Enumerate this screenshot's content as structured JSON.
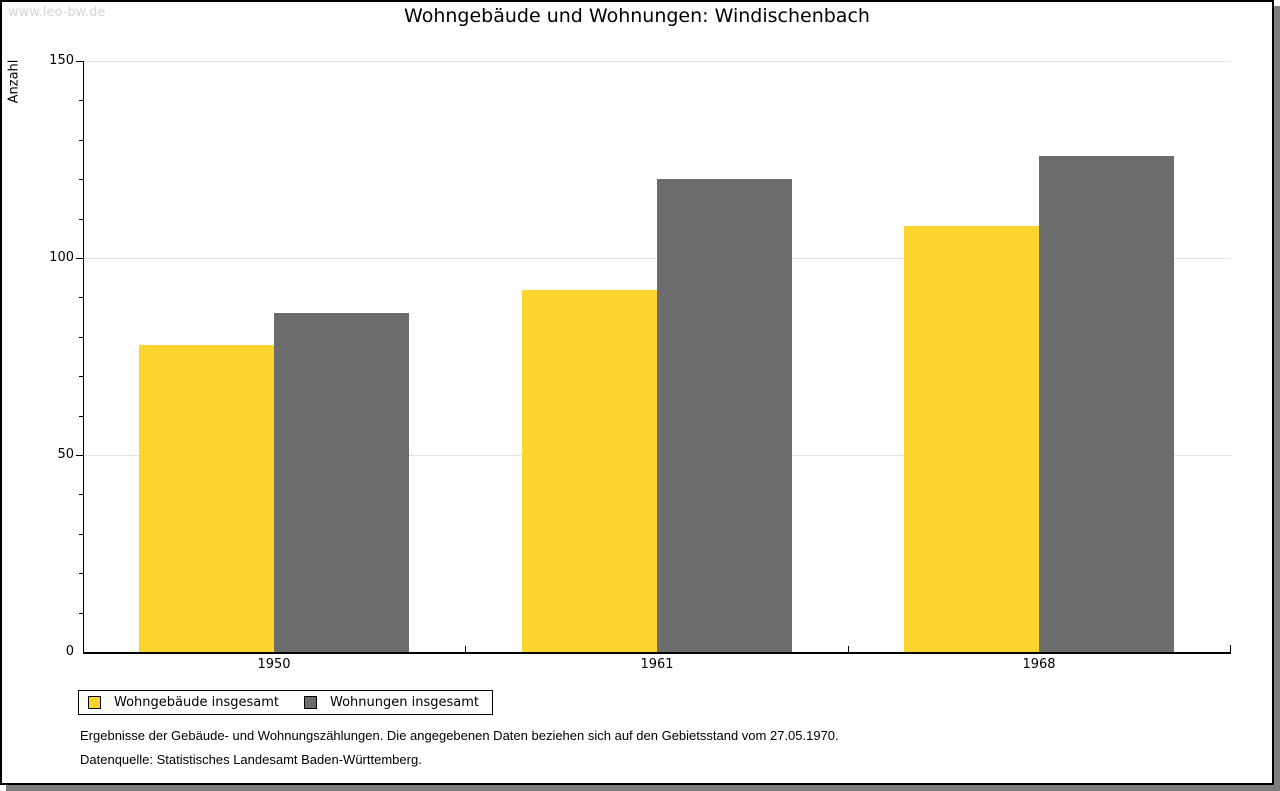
{
  "watermark": "www.leo-bw.de",
  "chart_data": {
    "type": "bar",
    "title": "Wohngebäude und Wohnungen: Windischenbach",
    "ylabel": "Anzahl",
    "xlabel": "",
    "categories": [
      "1950",
      "1961",
      "1968"
    ],
    "series": [
      {
        "name": "Wohngebäude insgesamt",
        "color": "#fcd42e",
        "values": [
          78,
          92,
          108
        ]
      },
      {
        "name": "Wohnungen insgesamt",
        "color": "#6c6c6c",
        "values": [
          86,
          120,
          126
        ]
      }
    ],
    "ylim": [
      0,
      150
    ],
    "yticks": [
      0,
      50,
      100,
      150
    ],
    "minor_tick_step": 10,
    "grid": true,
    "legend_position": "bottom-left"
  },
  "footer": {
    "line1": "Ergebnisse der Gebäude- und Wohnungszählungen. Die angegebenen Daten beziehen sich auf den Gebietsstand vom 27.05.1970.",
    "line2": "Datenquelle: Statistisches Landesamt Baden-Württemberg."
  }
}
